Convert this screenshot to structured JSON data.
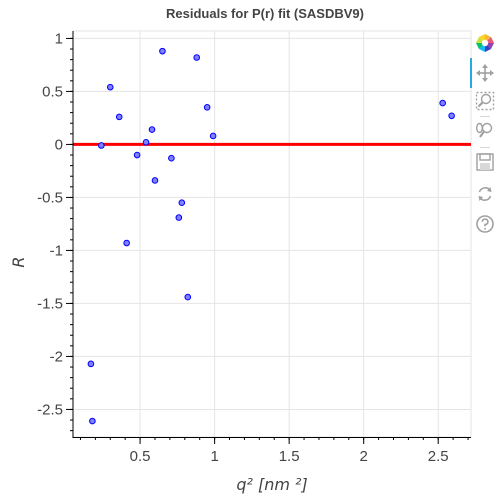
{
  "chart_data": {
    "type": "scatter",
    "title": "Residuals for P(r) fit (SASDBV9)",
    "xlabel": "q² [nm ²]",
    "ylabel": "R",
    "xlim": [
      0.05,
      2.72
    ],
    "ylim": [
      -2.76,
      1.07
    ],
    "xticks": [
      0.5,
      1,
      1.5,
      2,
      2.5
    ],
    "xtick_labels": [
      "0.5",
      "1",
      "1.5",
      "2",
      "2.5"
    ],
    "yticks": [
      1,
      0.5,
      0,
      -0.5,
      -1,
      -1.5,
      -2,
      -2.5
    ],
    "ytick_labels": [
      "1",
      "0.5",
      "0",
      "-0.5",
      "-1",
      "-1.5",
      "-2",
      "-2.5"
    ],
    "grid": true,
    "reference_line": {
      "y": 0,
      "color": "#ff0000"
    },
    "points": [
      {
        "x": 0.17,
        "y": -2.07
      },
      {
        "x": 0.18,
        "y": -2.61
      },
      {
        "x": 0.24,
        "y": -0.01
      },
      {
        "x": 0.3,
        "y": 0.54
      },
      {
        "x": 0.36,
        "y": 0.26
      },
      {
        "x": 0.41,
        "y": -0.93
      },
      {
        "x": 0.48,
        "y": -0.1
      },
      {
        "x": 0.54,
        "y": 0.02
      },
      {
        "x": 0.58,
        "y": 0.14
      },
      {
        "x": 0.6,
        "y": -0.34
      },
      {
        "x": 0.65,
        "y": 0.88
      },
      {
        "x": 0.71,
        "y": -0.13
      },
      {
        "x": 0.76,
        "y": -0.69
      },
      {
        "x": 0.78,
        "y": -0.55
      },
      {
        "x": 0.82,
        "y": -1.44
      },
      {
        "x": 0.88,
        "y": 0.82
      },
      {
        "x": 0.95,
        "y": 0.35
      },
      {
        "x": 0.99,
        "y": 0.08
      },
      {
        "x": 2.53,
        "y": 0.39
      },
      {
        "x": 2.59,
        "y": 0.27
      }
    ],
    "marker_fill": "#8080ff",
    "marker_stroke": "#0000ff"
  },
  "toolbar": {
    "tools": [
      {
        "name": "bokeh-logo-icon"
      },
      {
        "name": "pan-icon"
      },
      {
        "name": "box-zoom-icon"
      },
      {
        "name": "wheel-zoom-icon"
      },
      {
        "name": "save-icon"
      },
      {
        "name": "reset-icon"
      },
      {
        "name": "help-icon"
      }
    ],
    "active_color": "#26aae1",
    "icon_color": "#a0a0a0"
  }
}
